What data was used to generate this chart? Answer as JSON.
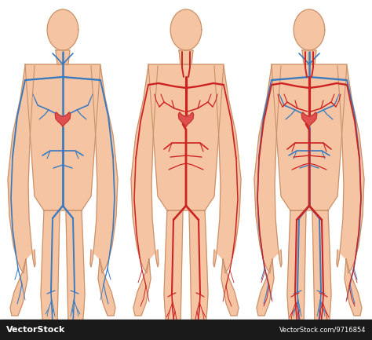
{
  "background_color": "#ffffff",
  "skin_color": "#f5c5a3",
  "skin_edge_color": "#c8906a",
  "vein_color": "#3a7abf",
  "artery_color": "#cc2222",
  "heart_color": "#e05050",
  "heart_accent": "#c0392b",
  "watermark_bg": "#1a1a1a",
  "watermark_text": "VectorStock",
  "watermark_text2": "VectorStock.com/9716854",
  "watermark_text_color": "#ffffff"
}
